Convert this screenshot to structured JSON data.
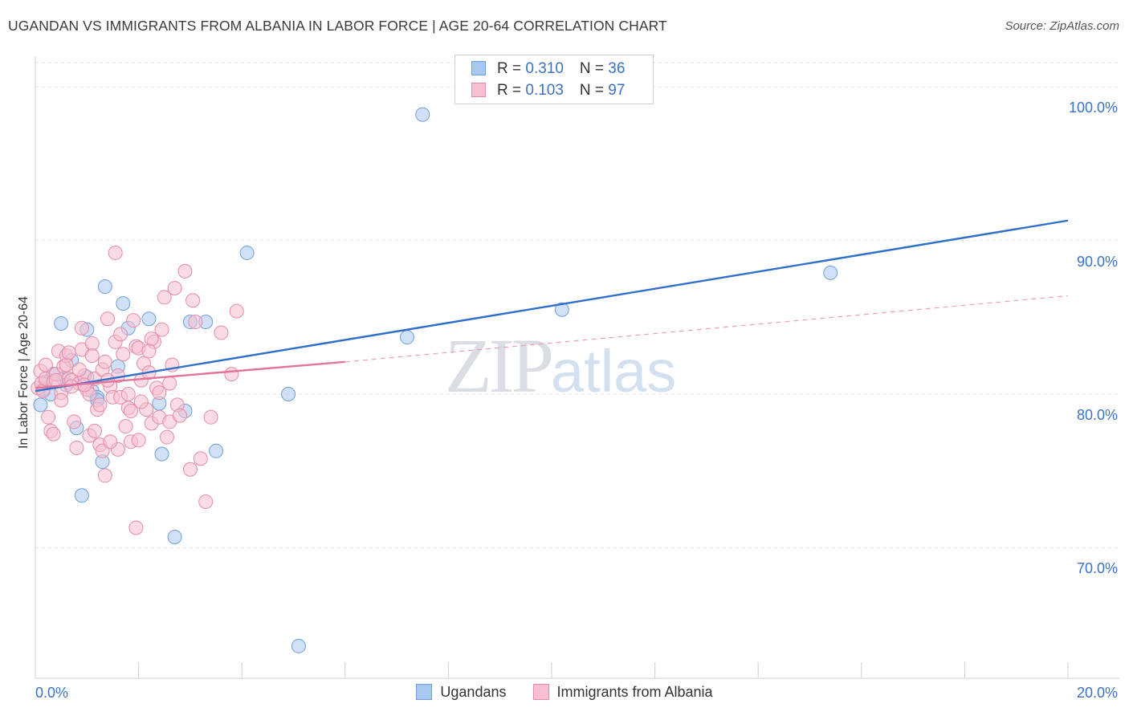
{
  "header": {
    "title": "UGANDAN VS IMMIGRANTS FROM ALBANIA IN LABOR FORCE | AGE 20-64 CORRELATION CHART",
    "source": "Source: ZipAtlas.com"
  },
  "stats": [
    {
      "r_label": "R = ",
      "r": "0.310",
      "n_label": "N = ",
      "n": "36",
      "color": "#a9c8f0",
      "border": "#6e9fd9"
    },
    {
      "r_label": "R = ",
      "r": "0.103",
      "n_label": "N = ",
      "n": "97",
      "color": "#f8bfd0",
      "border": "#e58ba8"
    }
  ],
  "watermark": {
    "zip": "ZIP",
    "atlas": "atlas"
  },
  "chart_data": {
    "type": "scatter",
    "title": "UGANDAN VS IMMIGRANTS FROM ALBANIA IN LABOR FORCE | AGE 20-64 CORRELATION CHART",
    "xlabel": "",
    "ylabel": "In Labor Force | Age 20-64",
    "xlim": [
      0,
      20
    ],
    "ylim": [
      61.5,
      102
    ],
    "x_tick_labels": [
      {
        "value": 0,
        "label": "0.0%"
      },
      {
        "value": 20,
        "label": "20.0%"
      }
    ],
    "y_ticks": [
      {
        "value": 70,
        "label": "70.0%"
      },
      {
        "value": 80,
        "label": "80.0%"
      },
      {
        "value": 90,
        "label": "90.0%"
      },
      {
        "value": 100,
        "label": "100.0%"
      }
    ],
    "legend_position": "bottom",
    "series": [
      {
        "name": "Ugandans",
        "fill": "#a9c8f0",
        "stroke": "#6e9fd9",
        "trend": {
          "x0": 0,
          "y0": 80.2,
          "x1": 20,
          "y1": 91.3,
          "color": "#2f6fcc"
        },
        "points": [
          [
            0.1,
            79.3
          ],
          [
            0.2,
            80.8
          ],
          [
            0.3,
            80.0
          ],
          [
            0.35,
            81.3
          ],
          [
            0.5,
            84.6
          ],
          [
            0.55,
            81.0
          ],
          [
            0.6,
            80.6
          ],
          [
            0.7,
            82.2
          ],
          [
            0.8,
            77.8
          ],
          [
            0.9,
            73.4
          ],
          [
            1.0,
            81.1
          ],
          [
            1.0,
            84.2
          ],
          [
            1.1,
            80.2
          ],
          [
            1.2,
            79.8
          ],
          [
            1.2,
            79.6
          ],
          [
            1.3,
            75.6
          ],
          [
            1.35,
            87.0
          ],
          [
            1.6,
            81.8
          ],
          [
            1.7,
            85.9
          ],
          [
            1.8,
            84.3
          ],
          [
            2.2,
            84.9
          ],
          [
            2.4,
            79.4
          ],
          [
            2.45,
            76.1
          ],
          [
            2.7,
            70.7
          ],
          [
            2.9,
            78.9
          ],
          [
            3.0,
            84.7
          ],
          [
            3.3,
            84.7
          ],
          [
            3.5,
            76.3
          ],
          [
            4.1,
            89.2
          ],
          [
            4.9,
            80.0
          ],
          [
            5.1,
            63.6
          ],
          [
            7.2,
            83.7
          ],
          [
            7.5,
            98.2
          ],
          [
            10.2,
            85.5
          ],
          [
            15.4,
            87.9
          ],
          [
            0.15,
            80.3
          ]
        ]
      },
      {
        "name": "Immigrants from Albania",
        "fill": "#f8bfd0",
        "stroke": "#e58ba8",
        "trend": {
          "x0": 0,
          "y0": 80.4,
          "x1": 6,
          "y1": 82.1,
          "color": "#e2739a"
        },
        "trend_extension": {
          "x0": 6,
          "y0": 82.1,
          "x1": 20,
          "y1": 86.4,
          "color": "#ee9fb8"
        },
        "points": [
          [
            0.05,
            80.4
          ],
          [
            0.1,
            81.5
          ],
          [
            0.12,
            80.7
          ],
          [
            0.15,
            80.2
          ],
          [
            0.2,
            81.0
          ],
          [
            0.25,
            78.5
          ],
          [
            0.3,
            77.6
          ],
          [
            0.35,
            80.8
          ],
          [
            0.4,
            81.3
          ],
          [
            0.45,
            82.8
          ],
          [
            0.5,
            80.1
          ],
          [
            0.55,
            81.8
          ],
          [
            0.6,
            82.5
          ],
          [
            0.65,
            81.0
          ],
          [
            0.7,
            80.9
          ],
          [
            0.75,
            78.2
          ],
          [
            0.8,
            76.5
          ],
          [
            0.85,
            80.7
          ],
          [
            0.9,
            82.9
          ],
          [
            0.95,
            81.2
          ],
          [
            1.0,
            80.3
          ],
          [
            1.05,
            77.3
          ],
          [
            1.1,
            83.3
          ],
          [
            1.15,
            81.0
          ],
          [
            1.2,
            79.0
          ],
          [
            1.25,
            76.7
          ],
          [
            1.3,
            81.6
          ],
          [
            1.35,
            74.7
          ],
          [
            1.4,
            84.9
          ],
          [
            1.45,
            80.5
          ],
          [
            1.5,
            79.8
          ],
          [
            1.55,
            83.4
          ],
          [
            1.6,
            76.4
          ],
          [
            1.65,
            83.9
          ],
          [
            1.7,
            82.6
          ],
          [
            1.75,
            77.9
          ],
          [
            1.8,
            79.1
          ],
          [
            1.85,
            76.9
          ],
          [
            1.9,
            84.8
          ],
          [
            1.95,
            83.1
          ],
          [
            2.0,
            77.0
          ],
          [
            2.05,
            80.9
          ],
          [
            2.1,
            82.0
          ],
          [
            2.15,
            79.0
          ],
          [
            2.2,
            81.4
          ],
          [
            2.25,
            78.1
          ],
          [
            2.3,
            83.4
          ],
          [
            2.35,
            80.4
          ],
          [
            2.4,
            78.5
          ],
          [
            2.45,
            84.2
          ],
          [
            2.5,
            86.3
          ],
          [
            2.55,
            77.2
          ],
          [
            2.6,
            78.2
          ],
          [
            2.65,
            81.9
          ],
          [
            2.7,
            86.9
          ],
          [
            2.75,
            79.3
          ],
          [
            2.8,
            78.6
          ],
          [
            2.9,
            88.0
          ],
          [
            3.0,
            75.1
          ],
          [
            3.05,
            86.1
          ],
          [
            3.1,
            84.7
          ],
          [
            3.2,
            75.8
          ],
          [
            3.3,
            73.0
          ],
          [
            3.4,
            78.5
          ],
          [
            3.6,
            84.0
          ],
          [
            3.8,
            81.3
          ],
          [
            3.9,
            85.4
          ],
          [
            1.55,
            89.2
          ],
          [
            1.95,
            71.3
          ],
          [
            1.3,
            76.3
          ],
          [
            0.6,
            81.9
          ],
          [
            0.9,
            84.3
          ],
          [
            1.05,
            80.0
          ],
          [
            1.25,
            79.3
          ],
          [
            1.45,
            76.9
          ],
          [
            1.65,
            79.8
          ],
          [
            1.85,
            78.9
          ],
          [
            2.05,
            79.5
          ],
          [
            2.25,
            83.6
          ],
          [
            0.35,
            77.4
          ],
          [
            0.5,
            79.6
          ],
          [
            0.7,
            80.5
          ],
          [
            0.85,
            81.6
          ],
          [
            1.15,
            77.6
          ],
          [
            1.35,
            82.1
          ],
          [
            1.6,
            81.2
          ],
          [
            1.8,
            80.0
          ],
          [
            2.0,
            83.0
          ],
          [
            2.2,
            82.8
          ],
          [
            2.4,
            80.1
          ],
          [
            0.2,
            81.9
          ],
          [
            0.4,
            80.9
          ],
          [
            0.65,
            82.7
          ],
          [
            0.95,
            80.6
          ],
          [
            1.4,
            80.9
          ],
          [
            2.6,
            80.7
          ],
          [
            1.1,
            82.5
          ]
        ]
      }
    ]
  },
  "legend": [
    {
      "label": "Ugandans",
      "color": "#a9c8f0",
      "border": "#6e9fd9"
    },
    {
      "label": "Immigrants from Albania",
      "color": "#f8bfd0",
      "border": "#e58ba8"
    }
  ]
}
